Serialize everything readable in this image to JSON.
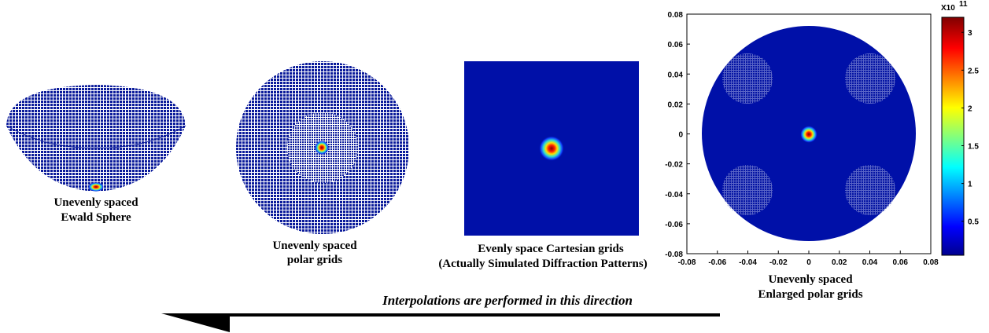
{
  "panels": [
    {
      "caption": [
        "Unevenly spaced",
        "Ewald Sphere"
      ]
    },
    {
      "caption": [
        "Unevenly spaced",
        "polar grids"
      ]
    },
    {
      "caption": [
        "Evenly space Cartesian grids",
        "(Actually Simulated Diffraction Patterns)"
      ]
    },
    {
      "caption": [
        "Unevenly spaced",
        "Enlarged polar grids"
      ],
      "xlim": [
        -0.08,
        0.08
      ],
      "ylim": [
        -0.08,
        0.08
      ],
      "xticks": [
        -0.08,
        -0.06,
        -0.04,
        -0.02,
        0,
        0.02,
        0.04,
        0.06,
        0.08
      ],
      "yticks": [
        -0.08,
        -0.06,
        -0.04,
        -0.02,
        0,
        0.02,
        0.04,
        0.06,
        0.08
      ]
    }
  ],
  "colorbar": {
    "multiplier": "X10",
    "exponent": 11,
    "lim": [
      0.05,
      3.2
    ],
    "ticks": [
      0.5,
      1,
      1.5,
      2,
      2.5,
      3
    ]
  },
  "arrow_text": "Interpolations are performed in this direction"
}
